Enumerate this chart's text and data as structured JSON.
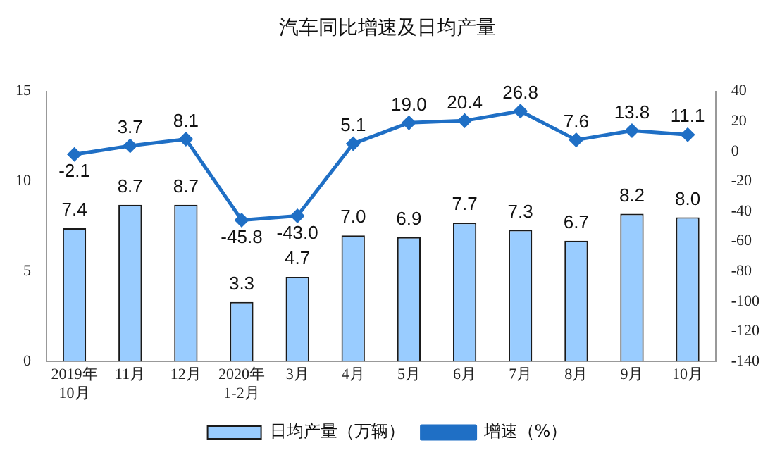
{
  "chart_data": {
    "type": "bar",
    "title": "汽车同比增速及日均产量",
    "categories": [
      "2019年\n10月",
      "11月",
      "12月",
      "2020年\n1-2月",
      "3月",
      "4月",
      "5月",
      "6月",
      "7月",
      "8月",
      "9月",
      "10月"
    ],
    "series": [
      {
        "name": "日均产量（万辆）",
        "color": "#99ccff",
        "values": [
          7.4,
          8.7,
          8.7,
          3.3,
          4.7,
          7.0,
          6.9,
          7.7,
          7.3,
          6.7,
          8.2,
          8.0
        ],
        "value_labels": [
          "7.4",
          "8.7",
          "8.7",
          "3.3",
          "4.7",
          "7.0",
          "6.9",
          "7.7",
          "7.3",
          "6.7",
          "8.2",
          "8.0"
        ]
      },
      {
        "name": "增速（%）",
        "type": "line",
        "axis": "y2",
        "color": "#1f6fc5",
        "values": [
          -2.1,
          3.7,
          8.1,
          -45.8,
          -43.0,
          5.1,
          19.0,
          20.4,
          26.8,
          7.6,
          13.8,
          11.1
        ],
        "value_labels": [
          "-2.1",
          "3.7",
          "8.1",
          "-45.8",
          "-43.0",
          "5.1",
          "19.0",
          "20.4",
          "26.8",
          "7.6",
          "13.8",
          "11.1"
        ]
      }
    ],
    "ylim": [
      0,
      15
    ],
    "yticks": [
      0,
      5,
      10,
      15
    ],
    "y2lim": [
      -140,
      40
    ],
    "y2ticks": [
      -140,
      -120,
      -100,
      -80,
      -60,
      -40,
      -20,
      0,
      20,
      40
    ],
    "legend": "bottom",
    "grid": false,
    "marker": "diamond",
    "line_style": "solid"
  }
}
